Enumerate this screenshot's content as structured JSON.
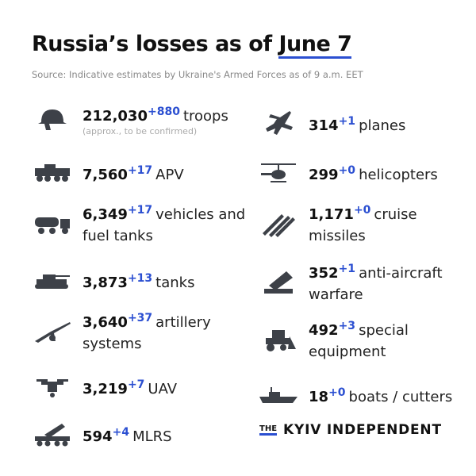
{
  "header": {
    "title_prefix": "Russia’s losses as of ",
    "title_date": "June 7",
    "source": "Source: Indicative estimates by Ukraine's Armed Forces as of 9 a.m. EET"
  },
  "accent_color": "#2b4fd1",
  "left": [
    {
      "icon": "helmet-icon",
      "value": "212,030",
      "delta": "+880",
      "label": "troops",
      "note": "(approx., to be confirmed)"
    },
    {
      "icon": "apv-icon",
      "value": "7,560",
      "delta": "+17",
      "label": "APV"
    },
    {
      "icon": "fuel-truck-icon",
      "value": "6,349",
      "delta": "+17",
      "label": "vehicles and fuel tanks"
    },
    {
      "icon": "tank-icon",
      "value": "3,873",
      "delta": "+13",
      "label": "tanks"
    },
    {
      "icon": "artillery-icon",
      "value": "3,640",
      "delta": "+37",
      "label": "artillery systems"
    },
    {
      "icon": "drone-icon",
      "value": "3,219",
      "delta": "+7",
      "label": "UAV"
    },
    {
      "icon": "mlrs-icon",
      "value": "594",
      "delta": "+4",
      "label": "MLRS"
    }
  ],
  "right": [
    {
      "icon": "plane-icon",
      "value": "314",
      "delta": "+1",
      "label": "planes"
    },
    {
      "icon": "helicopter-icon",
      "value": "299",
      "delta": "+0",
      "label": "helicopters"
    },
    {
      "icon": "missile-icon",
      "value": "1,171",
      "delta": "+0",
      "label": "cruise missiles"
    },
    {
      "icon": "anti-aircraft-icon",
      "value": "352",
      "delta": "+1",
      "label": "anti-aircraft warfare"
    },
    {
      "icon": "bulldozer-icon",
      "value": "492",
      "delta": "+3",
      "label": "special equipment"
    },
    {
      "icon": "boat-icon",
      "value": "18",
      "delta": "+0",
      "label": "boats / cutters"
    }
  ],
  "logo": {
    "the": "THE",
    "name": "KYIV INDEPENDENT"
  }
}
